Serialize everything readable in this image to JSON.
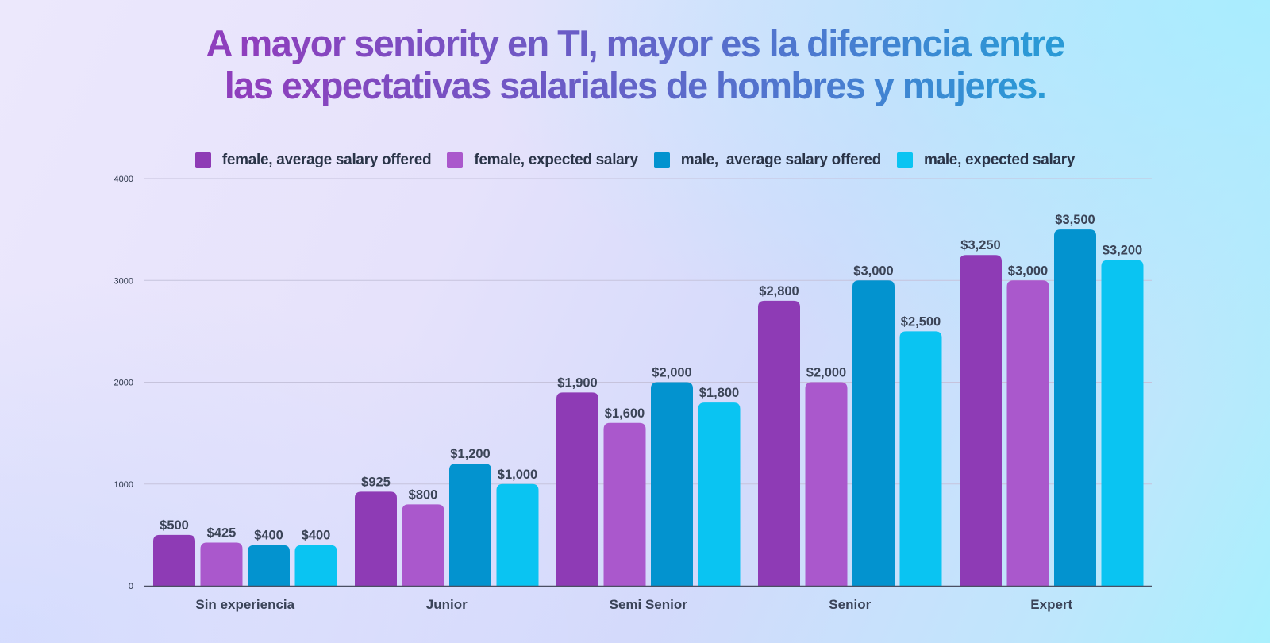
{
  "title_lines": [
    "A mayor seniority en TI, mayor es la diferencia entre",
    "las expectativas salariales de hombres y mujeres."
  ],
  "chart_data": {
    "type": "bar",
    "title": "A mayor seniority en TI, mayor es la diferencia entre las expectativas salariales de hombres y mujeres.",
    "xlabel": "",
    "ylabel": "",
    "ylim": [
      0,
      4000
    ],
    "yticks": [
      0,
      1000,
      2000,
      3000,
      4000
    ],
    "ytick_labels": [
      "0",
      "1000",
      "2000",
      "3000",
      "4000"
    ],
    "grid": true,
    "legend_position": "top-center",
    "categories": [
      "Sin experiencia",
      "Junior",
      "Semi Senior",
      "Senior",
      "Expert"
    ],
    "series": [
      {
        "name": "female, average salary offered",
        "color": "#8e3bb5",
        "values": [
          500,
          925,
          1900,
          2800,
          3250
        ],
        "labels": [
          "$500",
          "$925",
          "$1,900",
          "$2,800",
          "$3,250"
        ]
      },
      {
        "name": "female, expected salary",
        "color": "#aa58cc",
        "values": [
          425,
          800,
          1600,
          2000,
          3000
        ],
        "labels": [
          "$425",
          "$800",
          "$1,600",
          "$2,000",
          "$3,000"
        ]
      },
      {
        "name": "male,  average salary offered",
        "color": "#0393cf",
        "values": [
          400,
          1200,
          2000,
          3000,
          3500
        ],
        "labels": [
          "$400",
          "$1,200",
          "$2,000",
          "$3,000",
          "$3,500"
        ]
      },
      {
        "name": "male, expected salary",
        "color": "#0ac4f2",
        "values": [
          400,
          1000,
          1800,
          2500,
          3200
        ],
        "labels": [
          "$400",
          "$1,000",
          "$1,800",
          "$2,500",
          "$3,200"
        ]
      }
    ]
  }
}
